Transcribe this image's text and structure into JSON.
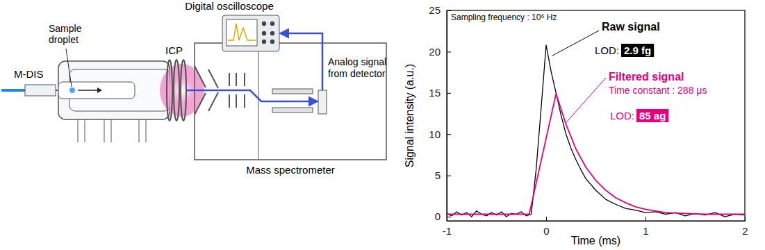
{
  "chart_data": {
    "type": "line",
    "xlabel": "Time (ms)",
    "ylabel": "Signal intensity (a.u.)",
    "xlim": [
      -1,
      2
    ],
    "xticks": [
      -1,
      0,
      1,
      2
    ],
    "ylim": [
      -0.5,
      25
    ],
    "yticks": [
      0,
      5,
      10,
      15,
      20,
      25
    ],
    "grid": false,
    "series": [
      {
        "name": "Raw signal",
        "color": "#000000",
        "x": [
          -1,
          -0.95,
          -0.9,
          -0.85,
          -0.8,
          -0.75,
          -0.7,
          -0.65,
          -0.6,
          -0.55,
          -0.5,
          -0.45,
          -0.4,
          -0.35,
          -0.3,
          -0.25,
          -0.2,
          -0.15,
          -0.1,
          -0.05,
          0,
          0.05,
          0.1,
          0.15,
          0.2,
          0.25,
          0.3,
          0.35,
          0.4,
          0.45,
          0.5,
          0.6,
          0.7,
          0.8,
          0.9,
          1.0,
          1.1,
          1.2,
          1.3,
          1.4,
          1.5,
          1.6,
          1.7,
          1.8,
          1.9,
          2.0
        ],
        "values": [
          0.4,
          0.1,
          0.6,
          0.2,
          0.5,
          0.0,
          0.7,
          0.3,
          0.1,
          0.5,
          0.2,
          0.6,
          0.0,
          0.4,
          0.3,
          0.6,
          0.1,
          0.3,
          5.8,
          13.2,
          20.8,
          17.6,
          15.0,
          12.3,
          10.0,
          8.3,
          6.9,
          5.7,
          4.6,
          3.9,
          3.2,
          2.1,
          1.5,
          1.0,
          0.8,
          0.5,
          0.6,
          0.3,
          0.5,
          0.1,
          0.4,
          0.2,
          0.5,
          0.0,
          0.3,
          0.2
        ]
      },
      {
        "name": "Filtered signal",
        "color": "#e4007f",
        "x": [
          -1,
          -0.5,
          -0.17,
          0,
          0.1,
          0.2,
          0.3,
          0.4,
          0.5,
          0.6,
          0.7,
          0.8,
          0.9,
          1.0,
          1.2,
          1.4,
          1.6,
          2.0
        ],
        "values": [
          0.3,
          0.3,
          0.3,
          9.5,
          14.9,
          11.2,
          8.2,
          6.0,
          4.4,
          3.2,
          2.3,
          1.7,
          1.2,
          0.9,
          0.5,
          0.4,
          0.3,
          0.3
        ]
      }
    ],
    "annotations": {
      "sampling": "Sampling frequency : 10⁶ Hz",
      "raw": {
        "lod_label": "LOD:",
        "lod": "2.9 fg"
      },
      "filtered": {
        "time_constant": "Time constant : 288 μs",
        "lod_label": "LOD:",
        "lod": "85 ag"
      }
    }
  },
  "diagram": {
    "labels": {
      "instrument": "M-DIS",
      "droplet": [
        "Sample",
        "droplet"
      ],
      "plasma": "ICP",
      "oscilloscope": "Digital oscilloscope",
      "signal": [
        "Analog signal",
        "from detector"
      ],
      "spectrometer": "Mass spectrometer"
    }
  }
}
